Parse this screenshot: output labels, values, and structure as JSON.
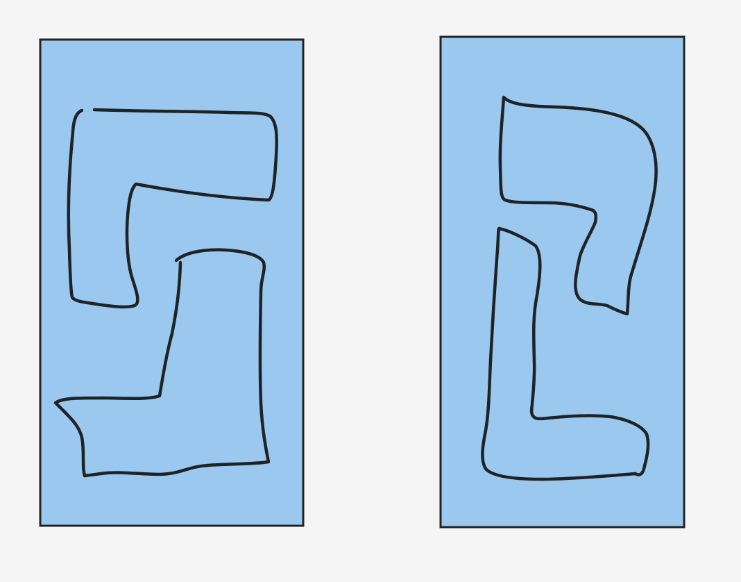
{
  "canvas": {
    "background_color": "#f5f5f5"
  },
  "panels": [
    {
      "id": "left-panel",
      "fill_color": "#9ac8ee",
      "border_color": "#222222",
      "contains": [
        "top-left-shape",
        "bottom-left-shape"
      ]
    },
    {
      "id": "right-panel",
      "fill_color": "#9ac8ee",
      "border_color": "#222222",
      "contains": [
        "top-right-shape",
        "bottom-right-shape"
      ]
    }
  ],
  "shapes": [
    {
      "id": "top-left-shape",
      "stroke_color": "#1f2326"
    },
    {
      "id": "bottom-left-shape",
      "stroke_color": "#1f2326"
    },
    {
      "id": "top-right-shape",
      "stroke_color": "#1f2326"
    },
    {
      "id": "bottom-right-shape",
      "stroke_color": "#1f2326"
    }
  ]
}
